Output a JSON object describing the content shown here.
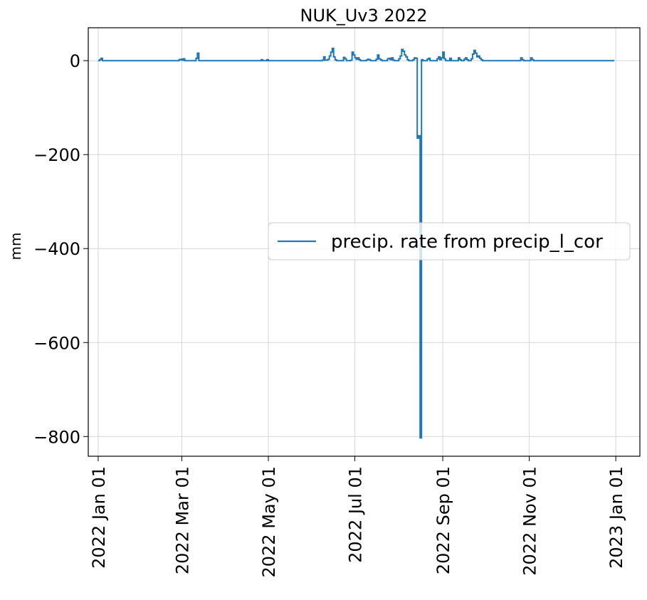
{
  "chart_data": {
    "type": "line",
    "title": "NUK_Uv3 2022",
    "xlabel": "",
    "ylabel": "mm",
    "grid": true,
    "legend_position": "center-right",
    "xlim": [
      "2021-12-25",
      "2023-01-18"
    ],
    "ylim": [
      -842,
      70
    ],
    "x_ticks": [
      {
        "date": "2022-01-01",
        "label": "2022 Jan 01"
      },
      {
        "date": "2022-03-01",
        "label": "2022 Mar 01"
      },
      {
        "date": "2022-05-01",
        "label": "2022 May 01"
      },
      {
        "date": "2022-07-01",
        "label": "2022 Jul 01"
      },
      {
        "date": "2022-09-01",
        "label": "2022 Sep 01"
      },
      {
        "date": "2022-11-01",
        "label": "2022 Nov 01"
      },
      {
        "date": "2023-01-01",
        "label": "2023 Jan 01"
      }
    ],
    "y_ticks": [
      {
        "value": 0,
        "label": "0"
      },
      {
        "value": -200,
        "label": "−200"
      },
      {
        "value": -400,
        "label": "−400"
      },
      {
        "value": -600,
        "label": "−600"
      },
      {
        "value": -800,
        "label": "−800"
      }
    ],
    "series": [
      {
        "name": "precip. rate from precip_l_cor",
        "color": "#1f77b4",
        "points": [
          [
            "2022-01-01",
            0
          ],
          [
            "2022-01-02",
            2
          ],
          [
            "2022-01-03",
            5
          ],
          [
            "2022-01-04",
            0
          ],
          [
            "2022-02-25",
            0
          ],
          [
            "2022-02-27",
            2
          ],
          [
            "2022-02-28",
            3
          ],
          [
            "2022-03-01",
            1
          ],
          [
            "2022-03-02",
            4
          ],
          [
            "2022-03-03",
            0
          ],
          [
            "2022-03-10",
            0
          ],
          [
            "2022-03-11",
            5
          ],
          [
            "2022-03-12",
            16
          ],
          [
            "2022-03-13",
            0
          ],
          [
            "2022-04-25",
            0
          ],
          [
            "2022-04-26",
            2
          ],
          [
            "2022-04-27",
            0
          ],
          [
            "2022-04-29",
            0
          ],
          [
            "2022-04-30",
            2
          ],
          [
            "2022-05-01",
            0
          ],
          [
            "2022-06-05",
            0
          ],
          [
            "2022-06-08",
            1
          ],
          [
            "2022-06-09",
            8
          ],
          [
            "2022-06-10",
            1
          ],
          [
            "2022-06-12",
            3
          ],
          [
            "2022-06-13",
            10
          ],
          [
            "2022-06-14",
            18
          ],
          [
            "2022-06-15",
            26
          ],
          [
            "2022-06-16",
            8
          ],
          [
            "2022-06-17",
            2
          ],
          [
            "2022-06-18",
            0
          ],
          [
            "2022-06-22",
            0
          ],
          [
            "2022-06-23",
            7
          ],
          [
            "2022-06-24",
            4
          ],
          [
            "2022-06-25",
            0
          ],
          [
            "2022-06-28",
            1
          ],
          [
            "2022-06-29",
            18
          ],
          [
            "2022-06-30",
            12
          ],
          [
            "2022-07-01",
            6
          ],
          [
            "2022-07-02",
            3
          ],
          [
            "2022-07-03",
            6
          ],
          [
            "2022-07-04",
            2
          ],
          [
            "2022-07-05",
            0
          ],
          [
            "2022-07-09",
            1
          ],
          [
            "2022-07-10",
            3
          ],
          [
            "2022-07-11",
            2
          ],
          [
            "2022-07-12",
            0
          ],
          [
            "2022-07-15",
            0
          ],
          [
            "2022-07-16",
            3
          ],
          [
            "2022-07-17",
            12
          ],
          [
            "2022-07-18",
            4
          ],
          [
            "2022-07-19",
            2
          ],
          [
            "2022-07-20",
            0
          ],
          [
            "2022-07-23",
            0
          ],
          [
            "2022-07-24",
            4
          ],
          [
            "2022-07-25",
            5
          ],
          [
            "2022-07-26",
            2
          ],
          [
            "2022-07-27",
            6
          ],
          [
            "2022-07-28",
            1
          ],
          [
            "2022-07-29",
            0
          ],
          [
            "2022-07-31",
            0
          ],
          [
            "2022-08-01",
            4
          ],
          [
            "2022-08-02",
            10
          ],
          [
            "2022-08-03",
            24
          ],
          [
            "2022-08-04",
            20
          ],
          [
            "2022-08-05",
            12
          ],
          [
            "2022-08-06",
            8
          ],
          [
            "2022-08-07",
            2
          ],
          [
            "2022-08-08",
            0
          ],
          [
            "2022-08-11",
            2
          ],
          [
            "2022-08-12",
            6
          ],
          [
            "2022-08-13",
            5
          ],
          [
            "2022-08-14",
            -165
          ],
          [
            "2022-08-15",
            -160
          ],
          [
            "2022-08-16",
            -803
          ],
          [
            "2022-08-17",
            2
          ],
          [
            "2022-08-18",
            0
          ],
          [
            "2022-08-20",
            0
          ],
          [
            "2022-08-21",
            3
          ],
          [
            "2022-08-22",
            5
          ],
          [
            "2022-08-23",
            0
          ],
          [
            "2022-08-27",
            0
          ],
          [
            "2022-08-28",
            4
          ],
          [
            "2022-08-29",
            8
          ],
          [
            "2022-08-30",
            2
          ],
          [
            "2022-08-31",
            6
          ],
          [
            "2022-09-01",
            18
          ],
          [
            "2022-09-02",
            4
          ],
          [
            "2022-09-03",
            0
          ],
          [
            "2022-09-05",
            0
          ],
          [
            "2022-09-06",
            5
          ],
          [
            "2022-09-07",
            0
          ],
          [
            "2022-09-11",
            0
          ],
          [
            "2022-09-12",
            6
          ],
          [
            "2022-09-13",
            2
          ],
          [
            "2022-09-14",
            0
          ],
          [
            "2022-09-16",
            3
          ],
          [
            "2022-09-17",
            6
          ],
          [
            "2022-09-18",
            2
          ],
          [
            "2022-09-19",
            0
          ],
          [
            "2022-09-21",
            4
          ],
          [
            "2022-09-22",
            14
          ],
          [
            "2022-09-23",
            22
          ],
          [
            "2022-09-24",
            16
          ],
          [
            "2022-09-25",
            8
          ],
          [
            "2022-09-26",
            10
          ],
          [
            "2022-09-27",
            5
          ],
          [
            "2022-09-28",
            2
          ],
          [
            "2022-09-29",
            0
          ],
          [
            "2022-10-25",
            0
          ],
          [
            "2022-10-26",
            6
          ],
          [
            "2022-10-27",
            2
          ],
          [
            "2022-10-28",
            0
          ],
          [
            "2022-11-01",
            0
          ],
          [
            "2022-11-02",
            6
          ],
          [
            "2022-11-03",
            2
          ],
          [
            "2022-11-04",
            0
          ],
          [
            "2022-12-31",
            0
          ]
        ]
      }
    ]
  }
}
